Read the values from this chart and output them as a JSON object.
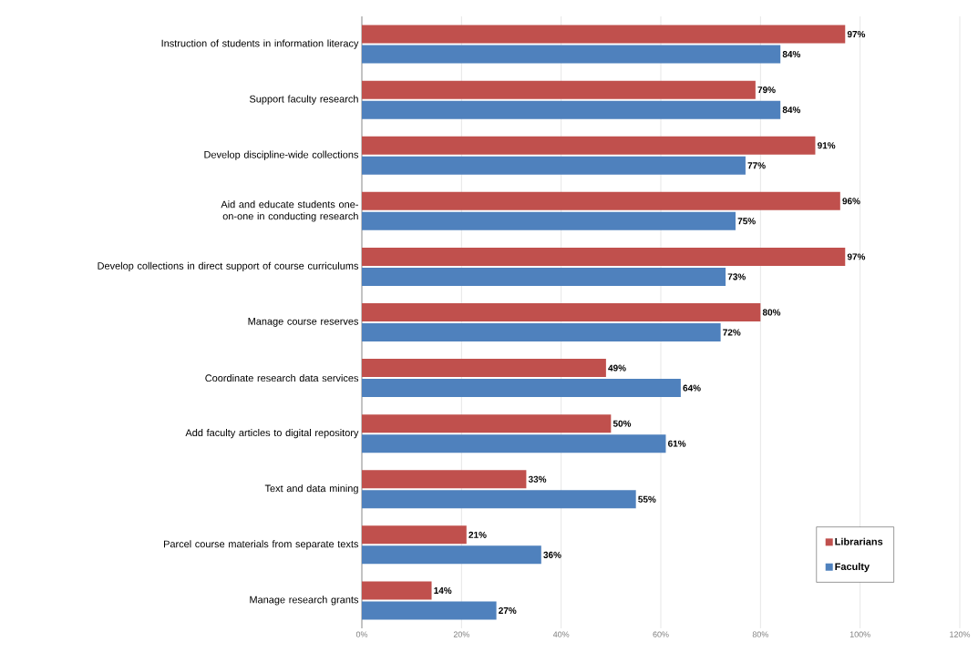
{
  "chart_data": {
    "type": "bar",
    "orientation": "horizontal",
    "categories": [
      "Instruction of students in information literacy",
      "Support faculty research",
      "Develop discipline-wide collections",
      "Aid and educate students one-on-one in conducting research",
      "Develop collections in direct support of course curriculums",
      "Manage course reserves",
      "Coordinate research data services",
      "Add faculty articles to digital repository",
      "Text and data mining",
      "Parcel course materials from separate texts",
      "Manage research grants"
    ],
    "series": [
      {
        "name": "Librarians",
        "color": "#c0504d",
        "values": [
          97,
          79,
          91,
          96,
          97,
          80,
          49,
          50,
          33,
          21,
          14
        ],
        "value_labels": [
          "97%",
          "79%",
          "91%",
          "96%",
          "97%",
          "80%",
          "49%",
          "50%",
          "33%",
          "21%",
          "14%"
        ]
      },
      {
        "name": "Faculty",
        "color": "#4f81bd",
        "values": [
          84,
          84,
          77,
          75,
          73,
          72,
          64,
          61,
          55,
          36,
          27
        ],
        "value_labels": [
          "84%",
          "84%",
          "77%",
          "75%",
          "73%",
          "72%",
          "64%",
          "61%",
          "55%",
          "36%",
          "27%"
        ]
      }
    ],
    "xlim": [
      0,
      120
    ],
    "xticks": [
      {
        "value": 0,
        "label": "0%"
      },
      {
        "value": 20,
        "label": "20%"
      },
      {
        "value": 40,
        "label": "40%"
      },
      {
        "value": 60,
        "label": "60%"
      },
      {
        "value": 80,
        "label": "80%"
      },
      {
        "value": 100,
        "label": "100%"
      },
      {
        "value": 120,
        "label": "120%"
      }
    ],
    "grid": "x",
    "legend": "bottom right"
  }
}
